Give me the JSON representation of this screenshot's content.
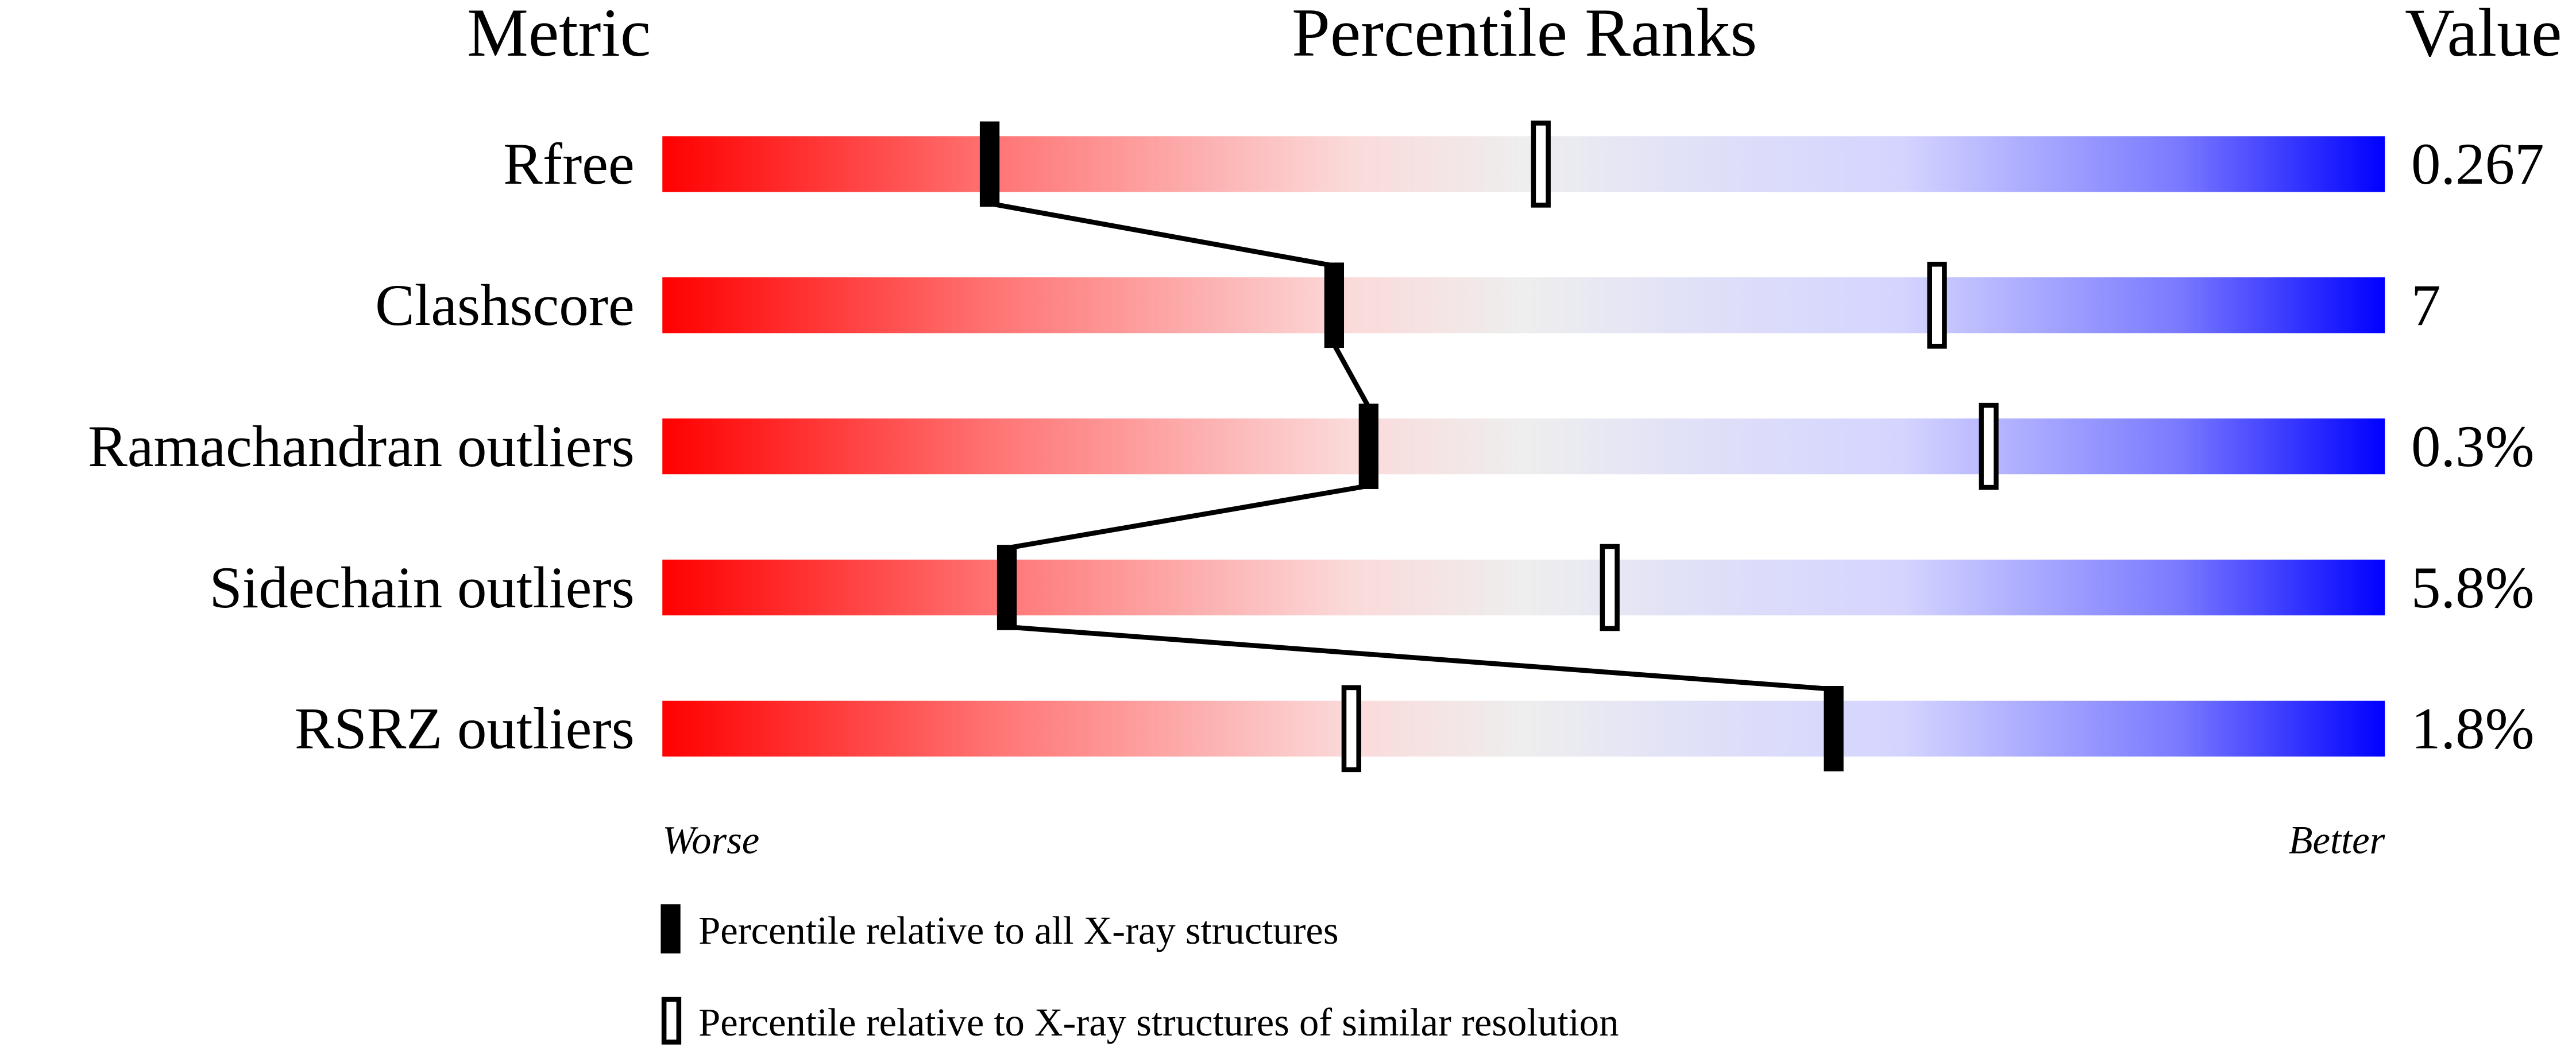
{
  "chart_data": {
    "type": "percentile-slider",
    "headers": {
      "metric": "Metric",
      "ranks": "Percentile Ranks",
      "value": "Value"
    },
    "xlim": [
      0,
      100
    ],
    "axis_labels": {
      "left": "Worse",
      "right": "Better"
    },
    "metrics": [
      {
        "name": "Rfree",
        "value": "0.267",
        "percentile_all": 19,
        "percentile_similar": 51
      },
      {
        "name": "Clashscore",
        "value": "7",
        "percentile_all": 39,
        "percentile_similar": 74
      },
      {
        "name": "Ramachandran outliers",
        "value": "0.3%",
        "percentile_all": 41,
        "percentile_similar": 77
      },
      {
        "name": "Sidechain outliers",
        "value": "5.8%",
        "percentile_all": 20,
        "percentile_similar": 55
      },
      {
        "name": "RSRZ outliers",
        "value": "1.8%",
        "percentile_all": 68,
        "percentile_similar": 40
      }
    ],
    "legend": {
      "all": "Percentile relative to all X-ray structures",
      "similar": "Percentile relative to X-ray structures of similar resolution"
    },
    "colors": {
      "worse": "#ff0000",
      "middle": "#eeeeee",
      "better": "#0000ff",
      "marker": "#000000"
    }
  }
}
